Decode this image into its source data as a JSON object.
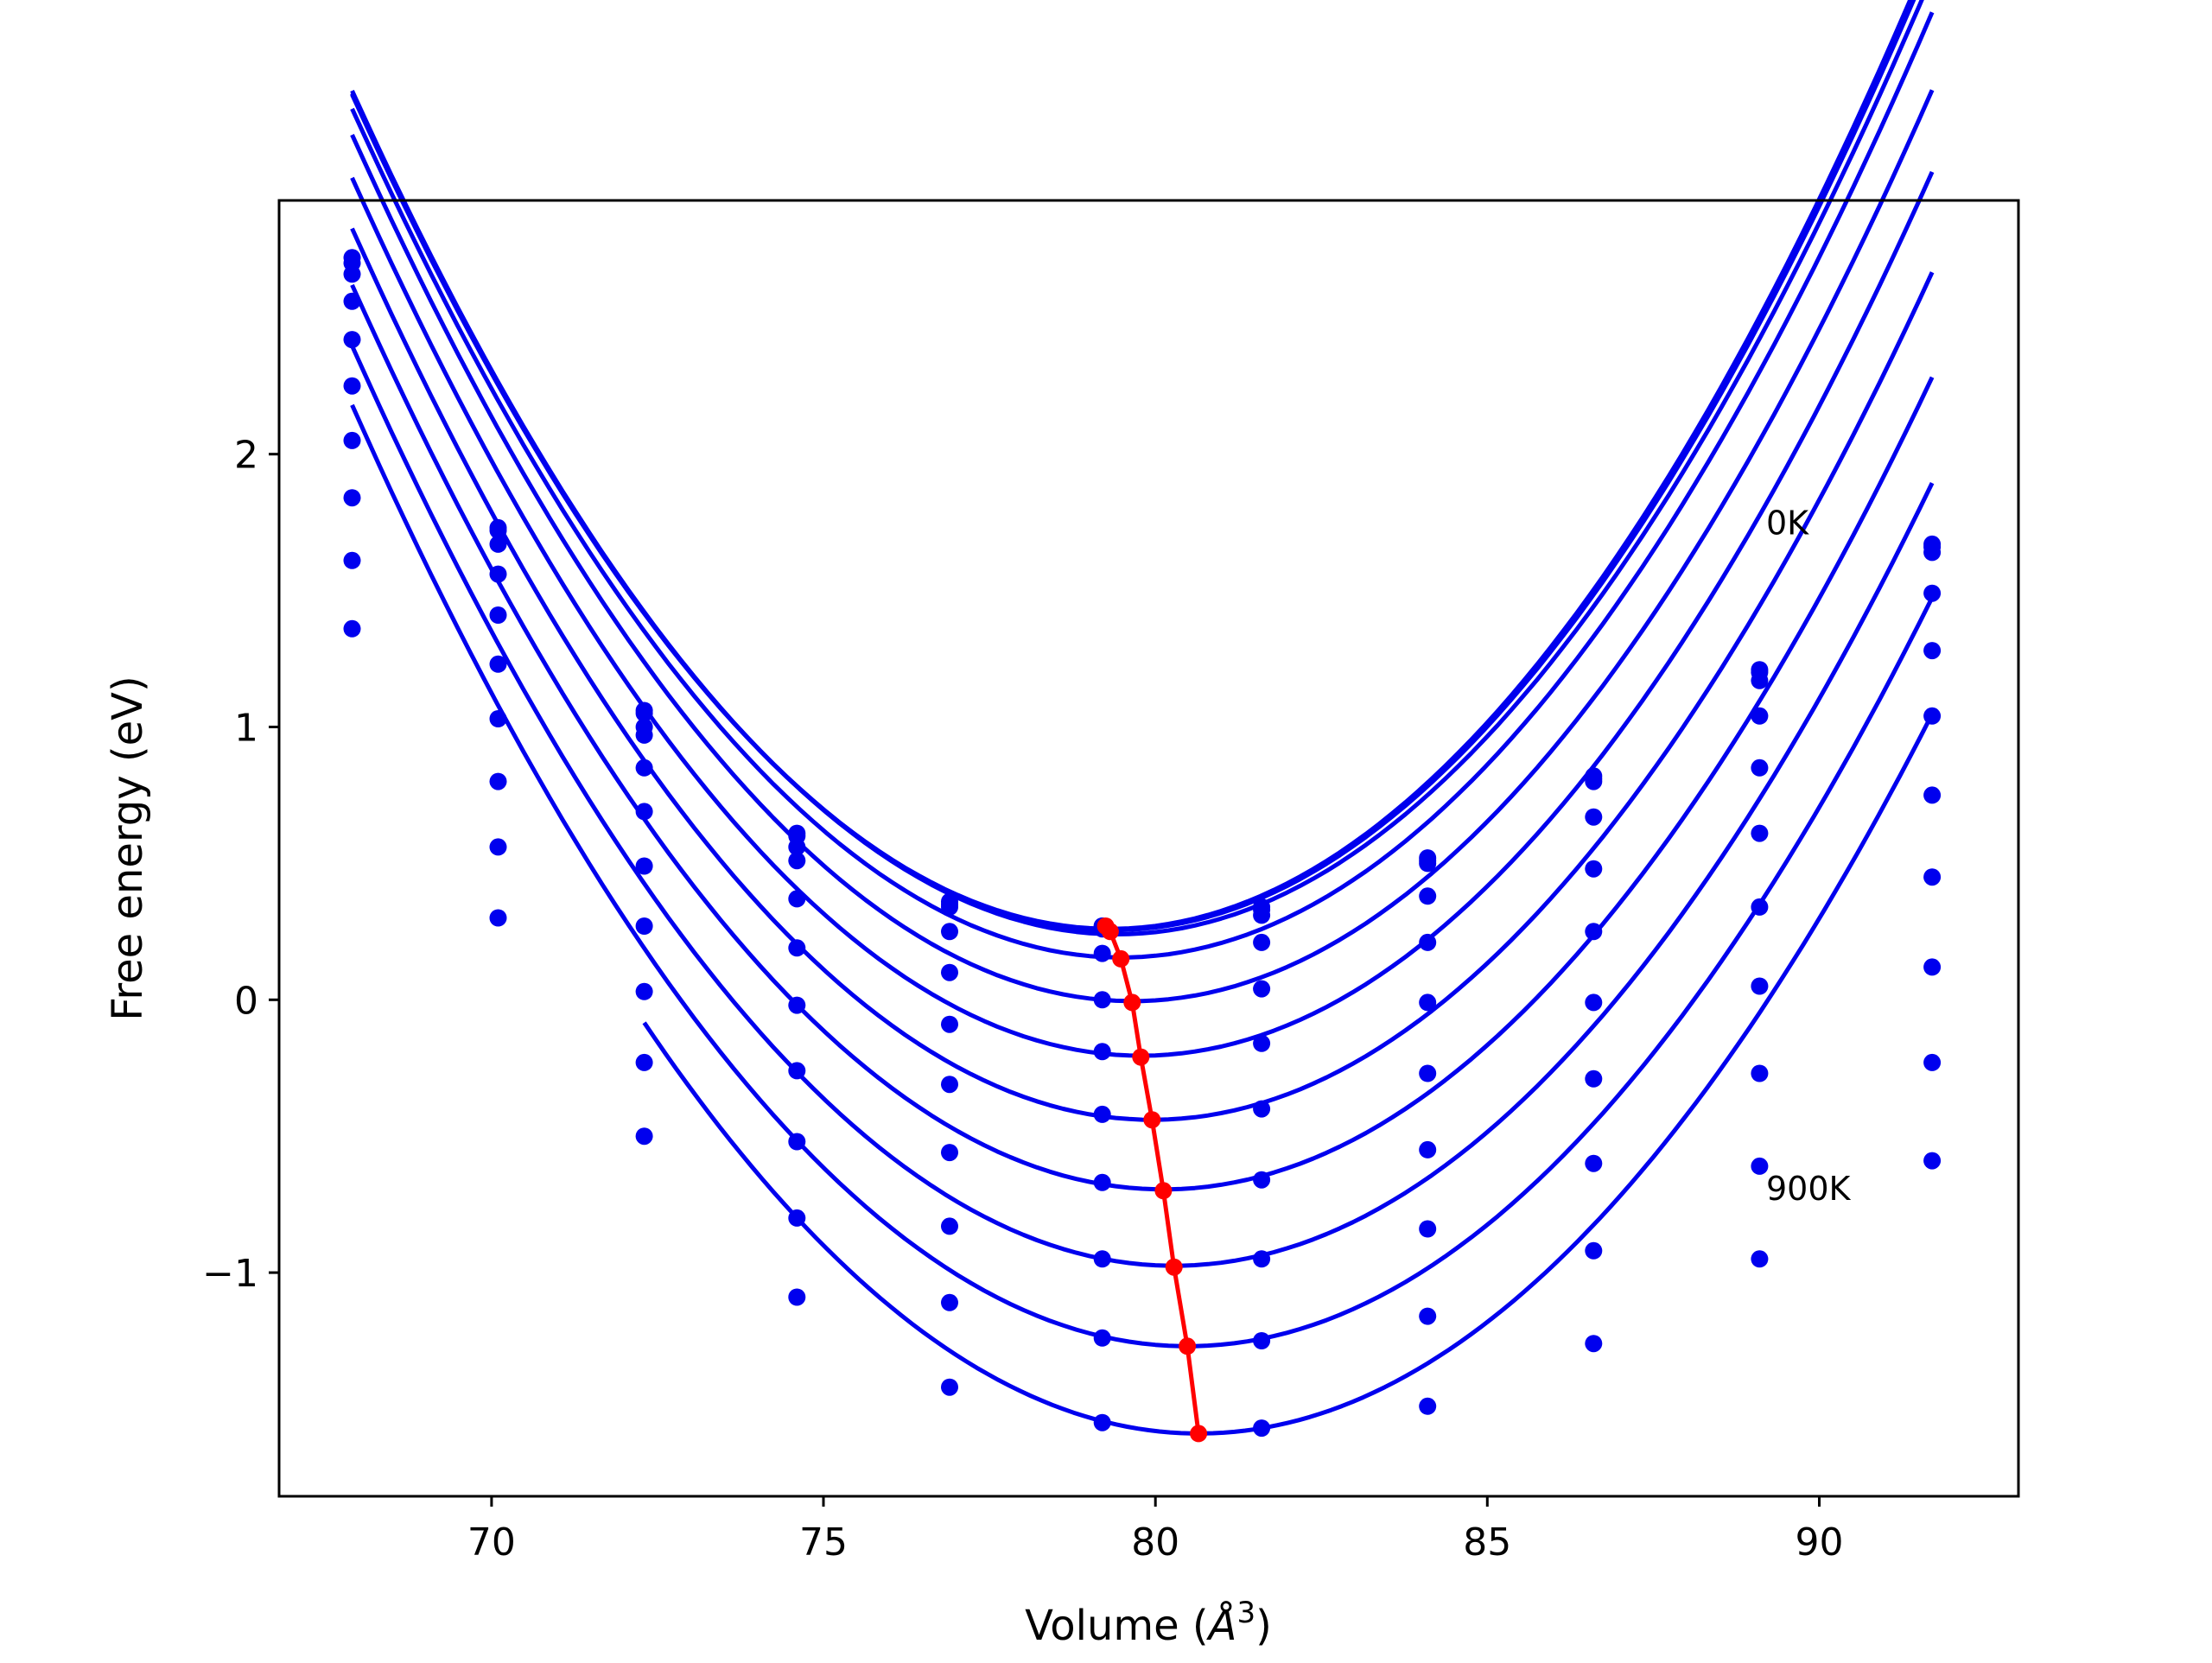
{
  "chart_data": {
    "type": "line",
    "xlabel": "Volume (Å³)",
    "xlabel_text": "Volume (",
    "xlabel_unit": "Å",
    "xlabel_sup": "3",
    "xlabel_close": ")",
    "ylabel": "Free energy (eV)",
    "xlim": [
      66.8,
      93.0
    ],
    "ylim": [
      -1.82,
      2.93
    ],
    "xticks": [
      70,
      75,
      80,
      85,
      90
    ],
    "xtick_labels": [
      "70",
      "75",
      "80",
      "85",
      "90"
    ],
    "yticks": [
      -1,
      0,
      1,
      2
    ],
    "ytick_labels": [
      "−1",
      "0",
      "1",
      "2"
    ],
    "grid": false,
    "annotations": [
      {
        "text": "0K",
        "x": 89.2,
        "y": 1.75
      },
      {
        "text": "900K",
        "x": 89.2,
        "y": -0.69
      }
    ],
    "x": [
      67.9,
      70.1,
      72.3,
      74.6,
      76.9,
      79.2,
      81.6,
      84.1,
      86.6,
      89.1,
      91.7
    ],
    "series": [
      {
        "values": [
          2.72,
          1.73,
          1.06,
          0.61,
          0.36,
          0.27,
          0.34,
          0.52,
          0.82,
          1.21,
          1.67
        ],
        "fit": {
          "a": 0.02345,
          "v0": 79.32,
          "e0": 0.26
        }
      },
      {
        "values": [
          2.7,
          1.72,
          1.05,
          0.6,
          0.35,
          0.27,
          0.33,
          0.51,
          0.81,
          1.2,
          1.66
        ],
        "fit": {
          "a": 0.0234,
          "v0": 79.35,
          "e0": 0.255
        }
      },
      {
        "values": [
          2.66,
          1.67,
          1.0,
          0.56,
          0.34,
          0.26,
          0.31,
          0.5,
          0.8,
          1.17,
          1.64
        ],
        "fit": {
          "a": 0.0233,
          "v0": 79.42,
          "e0": 0.24
        }
      },
      {
        "values": [
          2.56,
          1.56,
          0.97,
          0.51,
          0.25,
          0.17,
          0.21,
          0.38,
          0.67,
          1.04,
          1.49
        ],
        "fit": {
          "a": 0.0232,
          "v0": 79.48,
          "e0": 0.155
        }
      },
      {
        "values": [
          2.42,
          1.41,
          0.85,
          0.37,
          0.1,
          0.0,
          0.04,
          0.21,
          0.48,
          0.85,
          1.28
        ],
        "fit": {
          "a": 0.023,
          "v0": 79.65,
          "e0": -0.005
        }
      },
      {
        "values": [
          2.25,
          1.23,
          0.69,
          0.19,
          -0.09,
          -0.19,
          -0.16,
          -0.01,
          0.25,
          0.61,
          1.04
        ],
        "fit": {
          "a": 0.0228,
          "v0": 79.78,
          "e0": -0.205
        }
      },
      {
        "values": [
          2.05,
          1.03,
          0.49,
          -0.02,
          -0.31,
          -0.42,
          -0.4,
          -0.27,
          -0.01,
          0.34,
          0.75
        ],
        "fit": {
          "a": 0.0225,
          "v0": 79.95,
          "e0": -0.44
        }
      },
      {
        "values": [
          1.84,
          0.8,
          0.27,
          -0.26,
          -0.56,
          -0.67,
          -0.66,
          -0.55,
          -0.29,
          0.05,
          0.45
        ],
        "fit": {
          "a": 0.0222,
          "v0": 80.12,
          "e0": -0.695
        }
      },
      {
        "values": [
          1.61,
          0.56,
          0.03,
          -0.52,
          -0.83,
          -0.95,
          -0.95,
          -0.84,
          -0.6,
          -0.27,
          0.12
        ],
        "fit": {
          "a": 0.022,
          "v0": 80.28,
          "e0": -0.975
        }
      },
      {
        "values": [
          1.36,
          0.3,
          -0.23,
          -0.8,
          -1.11,
          -1.24,
          -1.25,
          -1.16,
          -0.92,
          -0.61,
          -0.23
        ],
        "fit": {
          "a": 0.0218,
          "v0": 80.48,
          "e0": -1.27
        }
      },
      {
        "values": [
          null,
          null,
          -0.5,
          -1.09,
          -1.42,
          -1.55,
          -1.57,
          -1.49,
          -1.26,
          -0.95,
          -0.59
        ],
        "fit": {
          "a": 0.0216,
          "v0": 80.65,
          "e0": -1.59
        }
      }
    ],
    "minima": {
      "x": [
        79.25,
        79.32,
        79.48,
        79.65,
        79.78,
        79.95,
        80.12,
        80.28,
        80.48,
        80.65
      ],
      "y": [
        0.27,
        0.25,
        0.15,
        -0.01,
        -0.21,
        -0.44,
        -0.7,
        -0.98,
        -1.27,
        -1.59
      ]
    },
    "colors": {
      "curves": "#0000ee",
      "minima": "#ff0000",
      "axes": "#000000"
    }
  }
}
